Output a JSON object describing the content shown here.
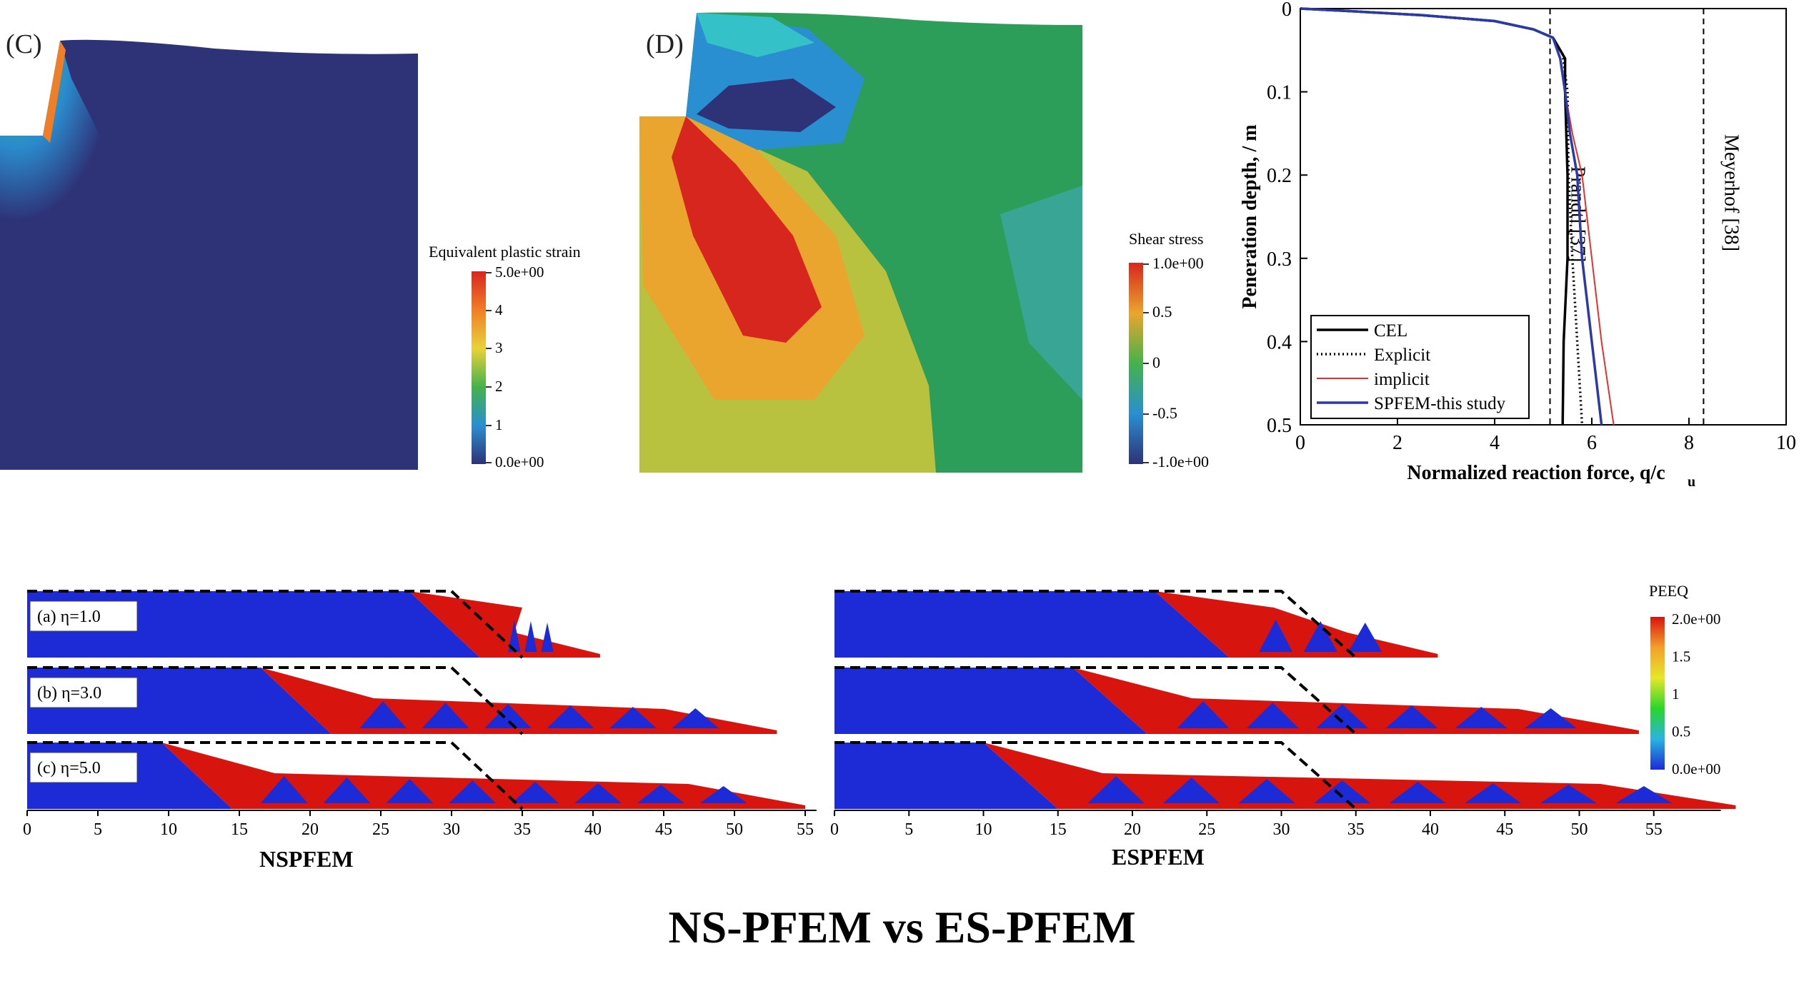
{
  "panels": {
    "c": {
      "letter": "(C)",
      "legend_title": "Equivalent plastic strain",
      "ticks": [
        "5.0e+00",
        "4",
        "3",
        "2",
        "1",
        "0.0e+00"
      ]
    },
    "d": {
      "letter": "(D)",
      "legend_title": "Shear stress",
      "ticks": [
        "1.0e+00",
        "0.5",
        "0",
        "-0.5",
        "-1.0e+00"
      ]
    }
  },
  "chart_data": {
    "type": "line",
    "xlabel": "Normalized reaction force, q/c",
    "xlabel_sub": "u",
    "ylabel": "Peneration depth, / m",
    "xlim": [
      0,
      10
    ],
    "ylim": [
      0,
      0.5
    ],
    "y_inverted": true,
    "x_ticks": [
      "0",
      "2",
      "4",
      "6",
      "8",
      "10"
    ],
    "y_ticks": [
      "0",
      "0.1",
      "0.2",
      "0.3",
      "0.4",
      "0.5"
    ],
    "reference_lines": [
      {
        "x": 5.14,
        "label": "Prandtl [37]"
      },
      {
        "x": 8.3,
        "label": "Meyerhof [38]"
      }
    ],
    "legend": "bottom-left",
    "series": [
      {
        "name": "CEL",
        "color": "#000000",
        "style": "solid",
        "x": [
          0,
          1.0,
          2.5,
          4.0,
          4.8,
          5.2,
          5.45,
          5.45,
          5.5,
          5.5,
          5.42,
          5.4
        ],
        "y": [
          0,
          0.003,
          0.008,
          0.015,
          0.025,
          0.035,
          0.06,
          0.1,
          0.2,
          0.3,
          0.4,
          0.5
        ]
      },
      {
        "name": "Explicit",
        "color": "#000000",
        "style": "dotted",
        "x": [
          0,
          1.0,
          2.5,
          4.0,
          4.8,
          5.2,
          5.4,
          5.5,
          5.52,
          5.6,
          5.7,
          5.8
        ],
        "y": [
          0,
          0.003,
          0.008,
          0.015,
          0.025,
          0.035,
          0.055,
          0.1,
          0.2,
          0.3,
          0.4,
          0.5
        ]
      },
      {
        "name": "implicit",
        "color": "#e8302a",
        "style": "solid",
        "x": [
          0,
          1.0,
          2.5,
          4.0,
          4.8,
          5.2,
          5.35,
          5.45,
          5.6,
          5.8,
          6.0,
          6.2,
          6.45
        ],
        "y": [
          0,
          0.003,
          0.008,
          0.015,
          0.025,
          0.035,
          0.06,
          0.1,
          0.15,
          0.2,
          0.3,
          0.4,
          0.5
        ]
      },
      {
        "name": "SPFEM-this study",
        "color": "#2b3aa8",
        "style": "solid",
        "x": [
          0,
          1.0,
          2.5,
          4.0,
          4.8,
          5.2,
          5.35,
          5.45,
          5.55,
          5.7,
          5.8,
          6.0,
          6.2
        ],
        "y": [
          0,
          0.003,
          0.008,
          0.015,
          0.025,
          0.035,
          0.06,
          0.1,
          0.15,
          0.2,
          0.3,
          0.4,
          0.5
        ]
      }
    ]
  },
  "rows": [
    {
      "label": "(a) η=1.0"
    },
    {
      "label": "(b) η=3.0"
    },
    {
      "label": "(c) η=5.0"
    }
  ],
  "left_axis_ticks": [
    "0",
    "5",
    "10",
    "15",
    "20",
    "25",
    "30",
    "35",
    "40",
    "45",
    "50",
    "55"
  ],
  "right_axis_ticks": [
    "0",
    "5",
    "10",
    "15",
    "20",
    "25",
    "30",
    "35",
    "40",
    "45",
    "50",
    "55"
  ],
  "peeq_legend": {
    "title": "PEEQ",
    "ticks": [
      "2.0e+00",
      "1.5",
      "1",
      "0.5",
      "0.0e+00"
    ]
  },
  "labels": {
    "left_method": "NSPFEM",
    "right_method": "ESPFEM"
  },
  "title": "NS-PFEM vs ES-PFEM",
  "colors": {
    "blue": "#1c2bd6",
    "red": "#d8140f",
    "navy": "#2e3277"
  }
}
